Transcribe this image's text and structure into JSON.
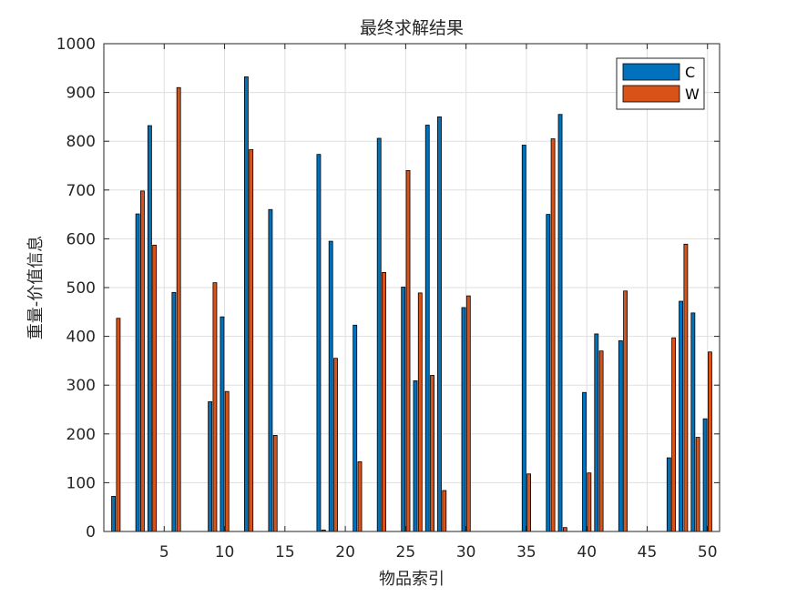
{
  "chart_data": {
    "type": "bar",
    "title": "最终求解结果",
    "xlabel": "物品索引",
    "ylabel": "重量-价值信息",
    "xlim": [
      0,
      51
    ],
    "ylim": [
      0,
      1000
    ],
    "xticks": [
      5,
      10,
      15,
      20,
      25,
      30,
      35,
      40,
      45,
      50
    ],
    "yticks": [
      0,
      100,
      200,
      300,
      400,
      500,
      600,
      700,
      800,
      900,
      1000
    ],
    "grid": true,
    "legend_position": "top-right",
    "categories": [
      1,
      2,
      3,
      4,
      5,
      6,
      7,
      8,
      9,
      10,
      11,
      12,
      13,
      14,
      15,
      16,
      17,
      18,
      19,
      20,
      21,
      22,
      23,
      24,
      25,
      26,
      27,
      28,
      29,
      30,
      31,
      32,
      33,
      34,
      35,
      36,
      37,
      38,
      39,
      40,
      41,
      42,
      43,
      44,
      45,
      46,
      47,
      48,
      49,
      50
    ],
    "series": [
      {
        "name": "C",
        "color": "#0072BD",
        "values": [
          72,
          0,
          651,
          832,
          0,
          490,
          0,
          0,
          266,
          440,
          0,
          932,
          0,
          660,
          0,
          0,
          0,
          773,
          595,
          0,
          423,
          0,
          806,
          0,
          501,
          309,
          833,
          850,
          0,
          459,
          0,
          0,
          0,
          0,
          792,
          0,
          650,
          855,
          0,
          285,
          405,
          0,
          391,
          0,
          0,
          0,
          151,
          472,
          448,
          231
        ]
      },
      {
        "name": "W",
        "color": "#D95319",
        "values": [
          437,
          0,
          698,
          587,
          0,
          910,
          0,
          0,
          510,
          287,
          0,
          783,
          0,
          197,
          0,
          0,
          0,
          3,
          355,
          0,
          143,
          0,
          531,
          0,
          740,
          489,
          320,
          84,
          0,
          483,
          0,
          0,
          0,
          0,
          118,
          0,
          805,
          8,
          0,
          120,
          370,
          0,
          493,
          0,
          0,
          0,
          397,
          589,
          193,
          368
        ]
      }
    ]
  }
}
